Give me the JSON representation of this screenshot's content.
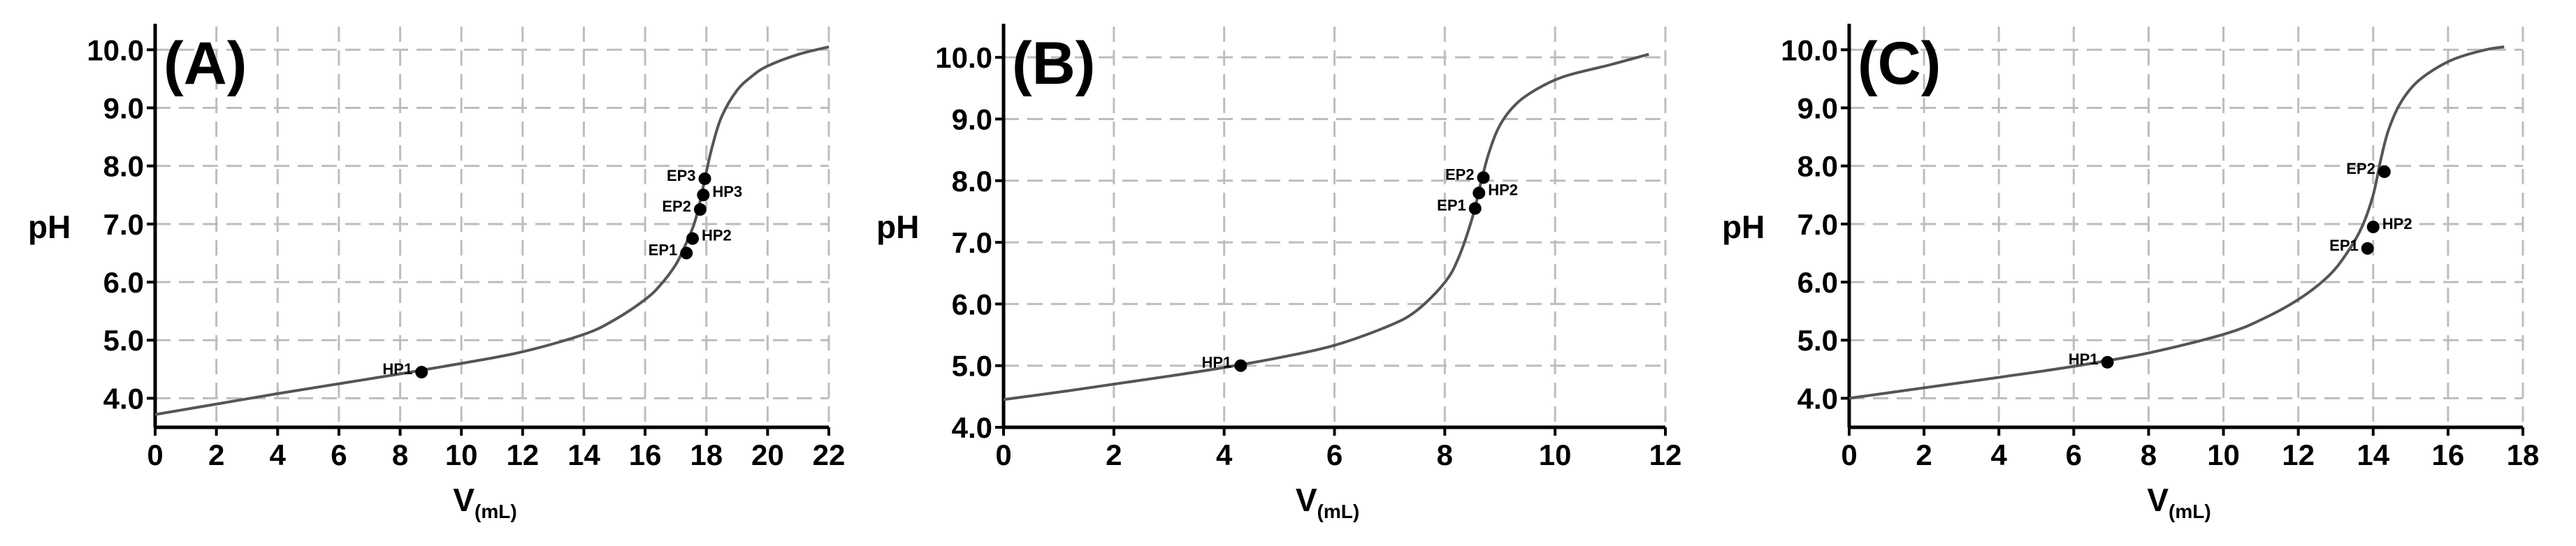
{
  "chart_data": [
    {
      "type": "line",
      "panel": "(A)",
      "ylabel": "pH",
      "xlabel": "V",
      "xlabel_sub": "(mL)",
      "xlim": [
        0,
        22
      ],
      "ylim": [
        3.5,
        10.4
      ],
      "x_ticks": [
        "0",
        "2",
        "4",
        "6",
        "8",
        "10",
        "12",
        "14",
        "16",
        "18",
        "20",
        "22"
      ],
      "y_ticks": [
        "4.0",
        "5.0",
        "6.0",
        "7.0",
        "8.0",
        "9.0",
        "10.0"
      ],
      "grid": true,
      "series": [
        {
          "x": [
            0,
            2,
            4,
            6,
            8,
            10,
            12,
            14,
            15,
            16,
            16.5,
            17,
            17.3,
            17.6,
            17.8,
            18.0,
            18.2,
            18.5,
            19,
            19.5,
            20,
            21,
            22
          ],
          "y": [
            3.72,
            3.9,
            4.08,
            4.25,
            4.42,
            4.6,
            4.8,
            5.1,
            5.35,
            5.7,
            5.95,
            6.3,
            6.62,
            7.0,
            7.4,
            7.9,
            8.35,
            8.85,
            9.3,
            9.55,
            9.72,
            9.92,
            10.05
          ]
        }
      ],
      "points": [
        {
          "label": "HP1",
          "x": 8.7,
          "y": 4.45,
          "side": "left"
        },
        {
          "label": "EP1",
          "x": 17.35,
          "y": 6.5,
          "side": "left"
        },
        {
          "label": "HP2",
          "x": 17.55,
          "y": 6.75,
          "side": "right"
        },
        {
          "label": "EP2",
          "x": 17.8,
          "y": 7.25,
          "side": "left"
        },
        {
          "label": "HP3",
          "x": 17.9,
          "y": 7.5,
          "side": "right"
        },
        {
          "label": "EP3",
          "x": 17.95,
          "y": 7.78,
          "side": "left"
        }
      ]
    },
    {
      "type": "line",
      "panel": "(B)",
      "ylabel": "pH",
      "xlabel": "V",
      "xlabel_sub": "(mL)",
      "xlim": [
        0,
        12
      ],
      "ylim": [
        4.0,
        10.5
      ],
      "x_ticks": [
        "0",
        "2",
        "4",
        "6",
        "8",
        "10",
        "12"
      ],
      "y_ticks": [
        "4.0",
        "5.0",
        "6.0",
        "7.0",
        "8.0",
        "9.0",
        "10.0"
      ],
      "grid": true,
      "series": [
        {
          "x": [
            0,
            1,
            2,
            3,
            4,
            5,
            6,
            7,
            7.5,
            8,
            8.25,
            8.5,
            8.65,
            8.8,
            9.0,
            9.3,
            9.7,
            10.2,
            11,
            11.7
          ],
          "y": [
            4.45,
            4.57,
            4.7,
            4.83,
            4.97,
            5.13,
            5.33,
            5.65,
            5.9,
            6.35,
            6.75,
            7.4,
            7.95,
            8.45,
            8.9,
            9.25,
            9.5,
            9.7,
            9.88,
            10.05
          ]
        }
      ],
      "points": [
        {
          "label": "HP1",
          "x": 4.3,
          "y": 5.0,
          "side": "left"
        },
        {
          "label": "EP1",
          "x": 8.55,
          "y": 7.55,
          "side": "left"
        },
        {
          "label": "HP2",
          "x": 8.62,
          "y": 7.8,
          "side": "right"
        },
        {
          "label": "EP2",
          "x": 8.7,
          "y": 8.05,
          "side": "left"
        }
      ]
    },
    {
      "type": "line",
      "panel": "(C)",
      "ylabel": "pH",
      "xlabel": "V",
      "xlabel_sub": "(mL)",
      "xlim": [
        0,
        18
      ],
      "ylim": [
        3.5,
        10.4
      ],
      "x_ticks": [
        "0",
        "2",
        "4",
        "6",
        "8",
        "10",
        "12",
        "14",
        "16",
        "18"
      ],
      "y_ticks": [
        "4.0",
        "5.0",
        "6.0",
        "7.0",
        "8.0",
        "9.0",
        "10.0"
      ],
      "grid": true,
      "series": [
        {
          "x": [
            0,
            2,
            4,
            6,
            8,
            10,
            11,
            12,
            12.8,
            13.3,
            13.7,
            14.0,
            14.2,
            14.4,
            14.7,
            15.1,
            15.6,
            16.2,
            17,
            17.5
          ],
          "y": [
            4.0,
            4.18,
            4.36,
            4.55,
            4.78,
            5.1,
            5.35,
            5.7,
            6.1,
            6.5,
            6.95,
            7.5,
            8.1,
            8.6,
            9.05,
            9.4,
            9.65,
            9.85,
            10.0,
            10.05
          ]
        }
      ],
      "points": [
        {
          "label": "HP1",
          "x": 6.9,
          "y": 4.62,
          "side": "left"
        },
        {
          "label": "EP1",
          "x": 13.85,
          "y": 6.58,
          "side": "left"
        },
        {
          "label": "HP2",
          "x": 14.0,
          "y": 6.95,
          "side": "right"
        },
        {
          "label": "EP2",
          "x": 14.3,
          "y": 7.9,
          "side": "left"
        }
      ]
    }
  ]
}
